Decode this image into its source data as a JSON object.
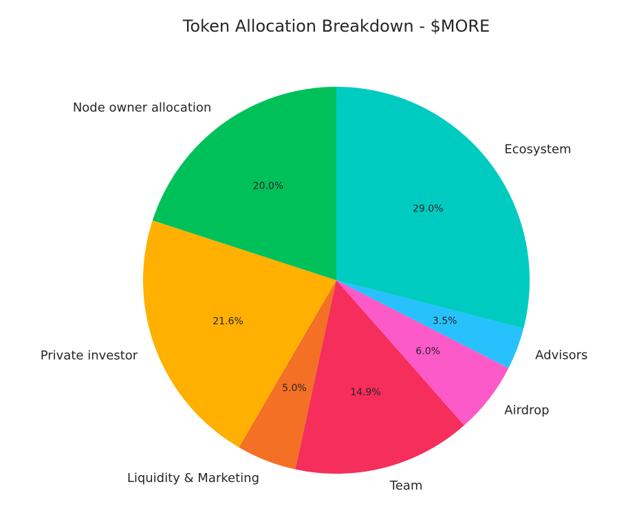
{
  "chart_data": {
    "type": "pie",
    "title": "Token Allocation Breakdown - $MORE",
    "start_angle_deg": 90,
    "direction": "counterclockwise",
    "slices": [
      {
        "label": "Node owner allocation",
        "value": 20.0,
        "pct_label": "20.0%",
        "color": "#00c159"
      },
      {
        "label": "Private investor",
        "value": 21.6,
        "pct_label": "21.6%",
        "color": "#ffb000"
      },
      {
        "label": "Liquidity & Marketing",
        "value": 5.0,
        "pct_label": "5.0%",
        "color": "#f47024"
      },
      {
        "label": "Team",
        "value": 14.9,
        "pct_label": "14.9%",
        "color": "#f52e5b"
      },
      {
        "label": "Airdrop",
        "value": 6.0,
        "pct_label": "6.0%",
        "color": "#fc5ac8"
      },
      {
        "label": "Advisors",
        "value": 3.5,
        "pct_label": "3.5%",
        "color": "#27c2fd"
      },
      {
        "label": "Ecosystem",
        "value": 29.0,
        "pct_label": "29.0%",
        "color": "#00cbc1"
      }
    ]
  }
}
